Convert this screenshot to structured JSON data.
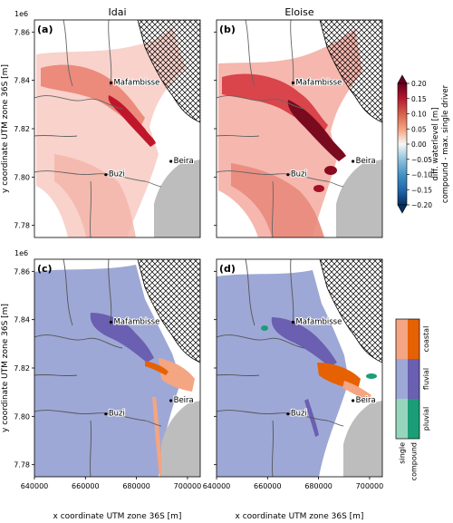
{
  "chart_data": [
    {
      "type": "heatmap",
      "panel_label": "(a)",
      "title": "Idai",
      "ylabel": "y coordinate UTM zone 36S [m]",
      "xlabel": "",
      "y_offset_label": "1e6",
      "xlim": [
        640000,
        705000
      ],
      "ylim": [
        7.775,
        7.865
      ],
      "yticks": [
        "7.78",
        "7.80",
        "7.82",
        "7.84",
        "7.86"
      ],
      "xticks": [],
      "places": [
        {
          "name": "Mafambisse",
          "x": 670000,
          "y": 7.839
        },
        {
          "name": "Buzi",
          "x": 668000,
          "y": 7.801
        },
        {
          "name": "Beira",
          "x": 693500,
          "y": 7.8065
        }
      ]
    },
    {
      "type": "heatmap",
      "panel_label": "(b)",
      "title": "Eloise",
      "xlabel": "",
      "ylabel": "",
      "xlim": [
        640000,
        705000
      ],
      "ylim": [
        7.775,
        7.865
      ],
      "places": [
        {
          "name": "Mafambisse",
          "x": 670000,
          "y": 7.839
        },
        {
          "name": "Buzi",
          "x": 668000,
          "y": 7.801
        },
        {
          "name": "Beira",
          "x": 693500,
          "y": 7.8065
        }
      ],
      "colorbar": {
        "label_line1": "diff. waterlevel [m]",
        "label_line2": "compound - max. single driver",
        "range": [
          -0.2,
          0.2
        ],
        "ticks": [
          "0.20",
          "0.15",
          "0.10",
          "0.05",
          "0.00",
          "−0.05",
          "−0.10",
          "−0.15",
          "−0.20"
        ]
      }
    },
    {
      "type": "heatmap",
      "panel_label": "(c)",
      "title": "",
      "ylabel": "y coordinate UTM zone 36S [m]",
      "xlabel": "x coordinate UTM zone 36S [m]",
      "y_offset_label": "1e6",
      "xlim": [
        640000,
        705000
      ],
      "ylim": [
        7.775,
        7.865
      ],
      "yticks": [
        "7.78",
        "7.80",
        "7.82",
        "7.84",
        "7.86"
      ],
      "xticks": [
        "640000",
        "660000",
        "680000",
        "700000"
      ],
      "places": [
        {
          "name": "Mafambisse",
          "x": 670000,
          "y": 7.839
        },
        {
          "name": "Buzi",
          "x": 668000,
          "y": 7.801
        },
        {
          "name": "Beira",
          "x": 693500,
          "y": 7.8065
        }
      ]
    },
    {
      "type": "heatmap",
      "panel_label": "(d)",
      "title": "",
      "xlabel": "x coordinate UTM zone 36S [m]",
      "ylabel": "",
      "xlim": [
        640000,
        705000
      ],
      "ylim": [
        7.775,
        7.865
      ],
      "xticks": [
        "640000",
        "660000",
        "680000",
        "700000"
      ],
      "places": [
        {
          "name": "Mafambisse",
          "x": 670000,
          "y": 7.839
        },
        {
          "name": "Buzi",
          "x": 668000,
          "y": 7.801
        },
        {
          "name": "Beira",
          "x": 693500,
          "y": 7.8065
        }
      ],
      "legend": {
        "rows": [
          "coastal",
          "fluvial",
          "pluvial"
        ],
        "columns": [
          "single",
          "compound"
        ],
        "colors": {
          "coastal": [
            "#f4a582",
            "#e66101"
          ],
          "fluvial": [
            "#9ea8d6",
            "#6a5fb0"
          ],
          "pluvial": [
            "#98d5bd",
            "#1b9e77"
          ]
        }
      }
    }
  ]
}
